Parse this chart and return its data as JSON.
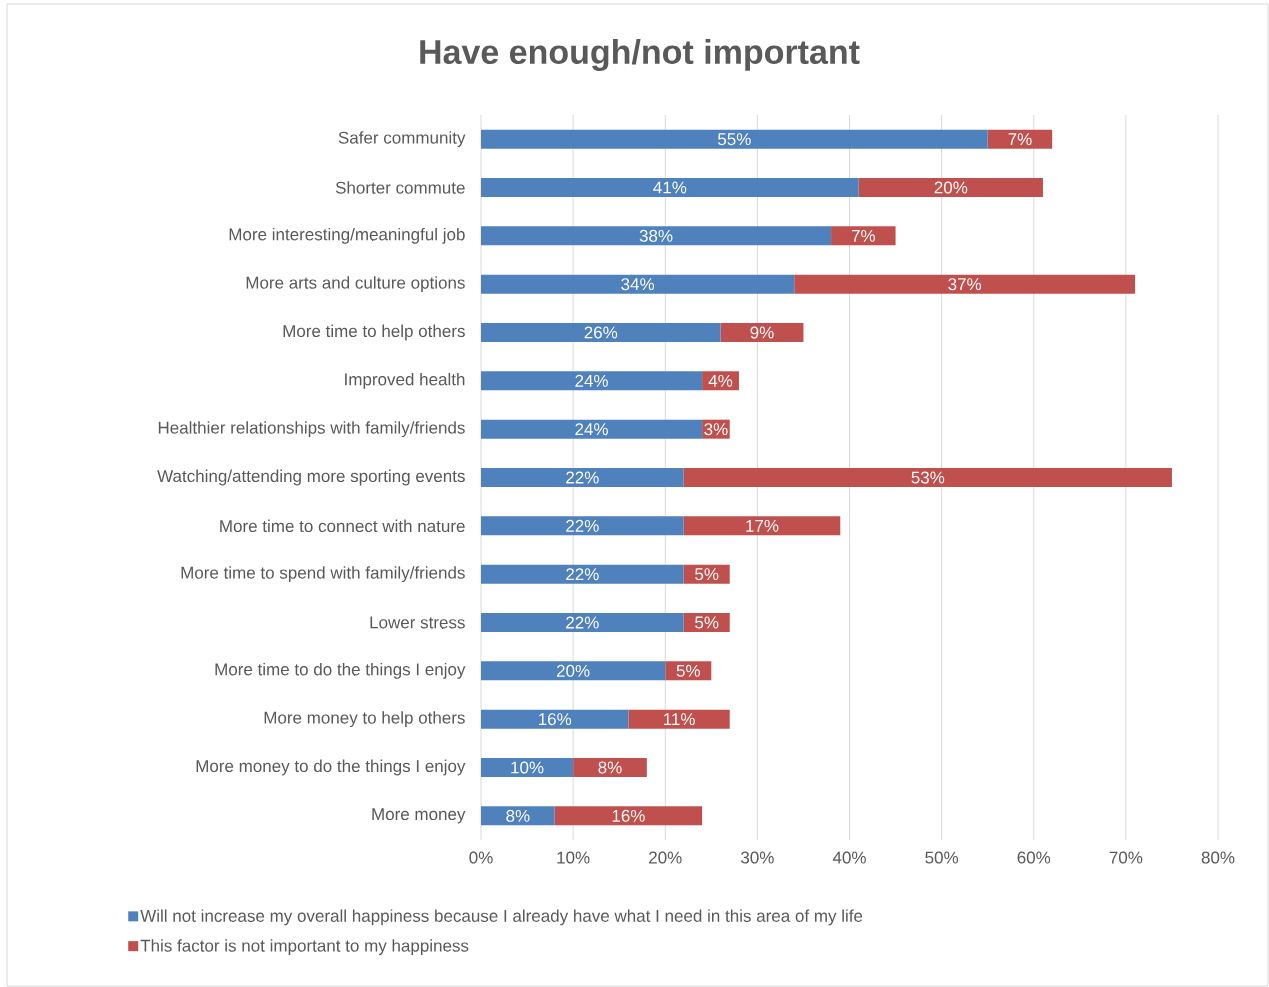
{
  "chart_data": {
    "type": "bar",
    "orientation": "horizontal",
    "stacked": true,
    "title": "Have enough/not important",
    "categories": [
      "Safer community",
      "Shorter commute",
      "More interesting/meaningful job",
      "More arts and culture options",
      "More time to help others",
      "Improved health",
      "Healthier relationships with family/friends",
      "Watching/attending more sporting events",
      "More time to connect with nature",
      "More time to spend with family/friends",
      "Lower stress",
      "More time to do the things I enjoy",
      "More money to help others",
      "More money to do the things I enjoy",
      "More money"
    ],
    "series": [
      {
        "name": "Will not increase my overall happiness because I already have what I need in this area of my life",
        "color": "#4f81bd",
        "values": [
          55,
          41,
          38,
          34,
          26,
          24,
          24,
          22,
          22,
          22,
          22,
          20,
          16,
          10,
          8
        ],
        "value_labels": [
          "55%",
          "41%",
          "38%",
          "34%",
          "26%",
          "24%",
          "24%",
          "22%",
          "22%",
          "22%",
          "22%",
          "20%",
          "16%",
          "10%",
          "8%"
        ]
      },
      {
        "name": "This factor is not important to my happiness",
        "color": "#c0504d",
        "values": [
          7,
          20,
          7,
          37,
          9,
          4,
          3,
          53,
          17,
          5,
          5,
          5,
          11,
          8,
          16
        ],
        "value_labels": [
          "7%",
          "20%",
          "7%",
          "37%",
          "9%",
          "4%",
          "3%",
          "53%",
          "17%",
          "5%",
          "5%",
          "5%",
          "11%",
          "8%",
          "16%"
        ]
      }
    ],
    "xlim": [
      0,
      80
    ],
    "xticks": [
      {
        "value": 0,
        "label": "0%"
      },
      {
        "value": 10,
        "label": "10%"
      },
      {
        "value": 20,
        "label": "20%"
      },
      {
        "value": 30,
        "label": "30%"
      },
      {
        "value": 40,
        "label": "40%"
      },
      {
        "value": 50,
        "label": "50%"
      },
      {
        "value": 60,
        "label": "60%"
      },
      {
        "value": 70,
        "label": "70%"
      },
      {
        "value": 80,
        "label": "80%"
      }
    ],
    "grid": "x",
    "legend": "bottom"
  }
}
